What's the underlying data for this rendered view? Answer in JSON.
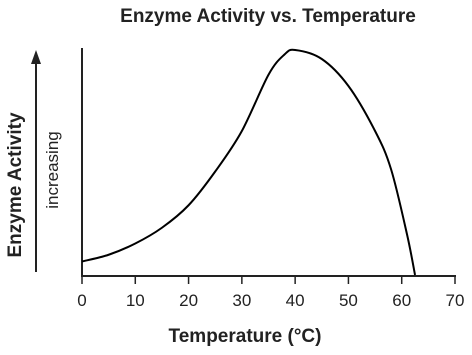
{
  "chart_data": {
    "type": "line",
    "title": "Enzyme Activity vs. Temperature",
    "x_label": "Temperature (°C)",
    "y_label": "Enzyme Activity",
    "y_annotation": "increasing",
    "x": [
      0,
      5,
      10,
      15,
      20,
      25,
      30,
      35,
      38,
      40,
      45,
      50,
      55,
      58,
      61,
      62.5
    ],
    "values": [
      6,
      9,
      14,
      21,
      31,
      46,
      64,
      89,
      98,
      100,
      96,
      84,
      64,
      47,
      18,
      0
    ],
    "color": "#000000",
    "xlim": [
      0,
      70
    ],
    "xticks": [
      0,
      10,
      20,
      30,
      40,
      50,
      60,
      70
    ],
    "ylim": [
      0,
      100
    ],
    "grid": false
  }
}
